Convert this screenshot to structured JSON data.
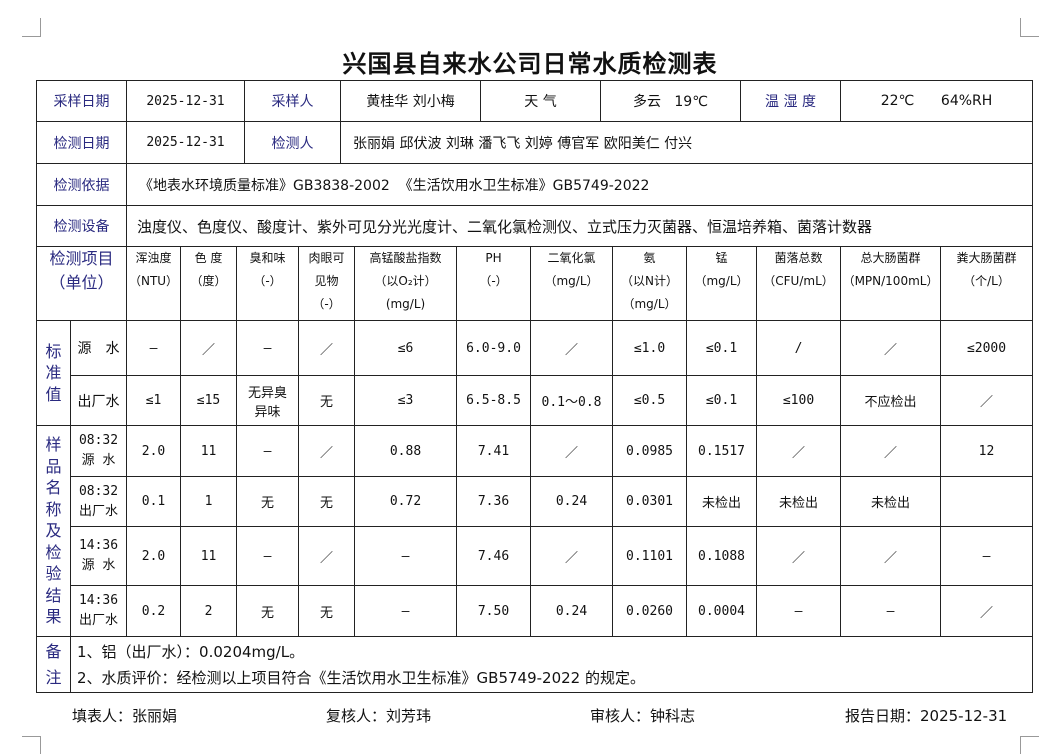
{
  "title": "兴国县自来水公司日常水质检测表",
  "row1": {
    "sample_date_label": "采样日期",
    "sample_date": "2025-12-31",
    "sampler_label": "采样人",
    "samplers": "黄桂华 刘小梅",
    "weather_label": "天 气",
    "weather": "多云   19℃",
    "humidity_label": "温 湿 度",
    "temp_humidity": "22℃      64%RH"
  },
  "row2": {
    "test_date_label": "检测日期",
    "test_date": "2025-12-31",
    "tester_label": "检测人",
    "testers": "张丽娟 邱伏波 刘琳 潘飞飞 刘婷 傅官军 欧阳美仁 付兴"
  },
  "row3": {
    "basis_label": "检测依据",
    "basis": "《地表水环境质量标准》GB3838-2002  《生活饮用水卫生标准》GB5749-2022"
  },
  "row4": {
    "equipment_label": "检测设备",
    "equipment": "浊度仪、色度仪、酸度计、紫外可见分光光度计、二氧化氯检测仪、立式压力灭菌器、恒温培养箱、菌落计数器"
  },
  "items_header": {
    "label": "检测项目\n（单位）",
    "columns": [
      "浑浊度\n（NTU）",
      "色 度\n（度）",
      "臭和味\n（-）",
      "肉眼可\n见物\n（-）",
      "高锰酸盐指数\n（以O₂计）\n(mg/L)",
      "PH\n（-）",
      "二氧化氯\n（mg/L）",
      "氨\n（以N计）\n（mg/L）",
      "锰\n（mg/L）",
      "菌落总数\n（CFU/mL）",
      "总大肠菌群\n（MPN/100mL）",
      "粪大肠菌群\n（个/L）"
    ]
  },
  "standards": {
    "label": "标准值",
    "rows": [
      {
        "name": "源　水",
        "values": [
          "—",
          "／",
          "—",
          "／",
          "≤6",
          "6.0-9.0",
          "／",
          "≤1.0",
          "≤0.1",
          "/",
          "／",
          "≤2000"
        ]
      },
      {
        "name": "出厂水",
        "values": [
          "≤1",
          "≤15",
          "无异臭\n异味",
          "无",
          "≤3",
          "6.5-8.5",
          "0.1～0.8",
          "≤0.5",
          "≤0.1",
          "≤100",
          "不应检出",
          "／"
        ]
      }
    ]
  },
  "samples": {
    "label": "样品名称及检验结果",
    "rows": [
      {
        "name": "08:32\n源 水",
        "values": [
          "2.0",
          "11",
          "—",
          "／",
          "0.88",
          "7.41",
          "／",
          "0.0985",
          "0.1517",
          "／",
          "／",
          "12"
        ]
      },
      {
        "name": "08:32\n出厂水",
        "values": [
          "0.1",
          "1",
          "无",
          "无",
          "0.72",
          "7.36",
          "0.24",
          "0.0301",
          "未检出",
          "未检出",
          "未检出",
          ""
        ]
      },
      {
        "name": "14:36\n源 水",
        "values": [
          "2.0",
          "11",
          "—",
          "／",
          "—",
          "7.46",
          "／",
          "0.1101",
          "0.1088",
          "／",
          "／",
          "—"
        ]
      },
      {
        "name": "14:36\n出厂水",
        "values": [
          "0.2",
          "2",
          "无",
          "无",
          "—",
          "7.50",
          "0.24",
          "0.0260",
          "0.0004",
          "—",
          "—",
          "／"
        ]
      }
    ]
  },
  "remarks": {
    "label": "备注",
    "lines": [
      "1、铝（出厂水）：0.0204mg/L。",
      "2、水质评价：经检测以上项目符合《生活饮用水卫生标准》GB5749-2022 的规定。"
    ]
  },
  "footer": {
    "filled_by": "填表人：张丽娟",
    "reviewed_by": "复核人：刘芳玮",
    "approved_by": "审核人：钟科志",
    "report_date": "报告日期：2025-12-31"
  }
}
